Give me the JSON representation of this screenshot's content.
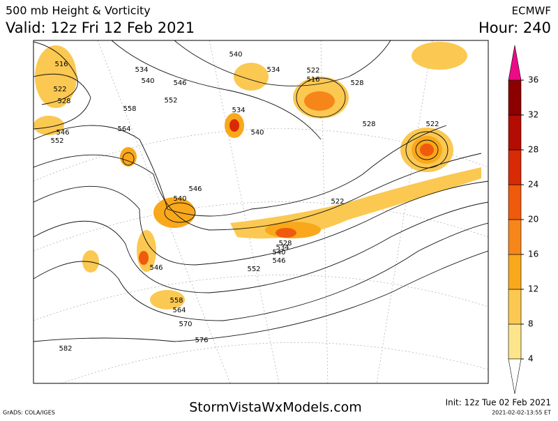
{
  "header": {
    "title": "500 mb Height & Vorticity",
    "valid": "Valid: 12z Fri 12 Feb 2021",
    "model": "ECMWF",
    "hour": "Hour: 240"
  },
  "contour_labels": [
    "516",
    "522",
    "528",
    "546",
    "552",
    "534",
    "540",
    "546",
    "552",
    "558",
    "564",
    "540",
    "534",
    "522",
    "516",
    "528",
    "534",
    "540",
    "528",
    "522",
    "546",
    "540",
    "522",
    "528",
    "534",
    "540",
    "546",
    "546",
    "552",
    "558",
    "564",
    "570",
    "576",
    "582"
  ],
  "colorbar": {
    "levels": [
      4,
      8,
      12,
      16,
      20,
      24,
      28,
      32,
      36
    ],
    "colors": [
      "#fde58c",
      "#fbc851",
      "#f9a81c",
      "#f7861a",
      "#f05a0c",
      "#d92a06",
      "#b40c02",
      "#8c0000"
    ],
    "over_color": "#ec0a87"
  },
  "footer": {
    "site": "StormVistaWxModels.com",
    "init": "Init: 12z Tue 02 Feb 2021",
    "grads": "GrADS: COLA/IGES",
    "stamp": "2021-02-02-13:55 ET"
  }
}
